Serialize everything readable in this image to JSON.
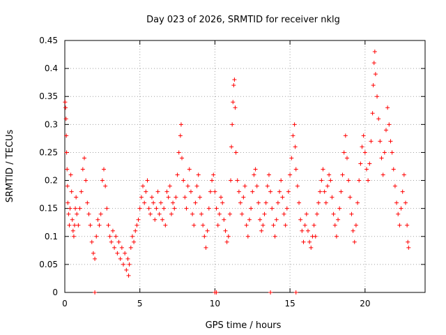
{
  "chart_data": {
    "type": "scatter",
    "title": "Day 023 of 2026, SRMTID for receiver nklg",
    "xlabel": "GPS time / hours",
    "ylabel": "SRMTID / TECUs",
    "xlim": [
      0,
      24
    ],
    "ylim": [
      0,
      0.45
    ],
    "xticks": [
      0,
      5,
      10,
      15,
      20
    ],
    "xtick_labels": [
      "0",
      "5",
      "10",
      "15",
      "20"
    ],
    "yticks": [
      0,
      0.05,
      0.1,
      0.15,
      0.2,
      0.25,
      0.3,
      0.35,
      0.4,
      0.45
    ],
    "ytick_labels": [
      "0",
      "0.05",
      "0.1",
      "0.15",
      "0.2",
      "0.25",
      "0.3",
      "0.35",
      "0.4",
      "0.45"
    ],
    "grid": true,
    "marker": "+",
    "color": "#ff0000",
    "series": [
      {
        "name": "SRMTID",
        "points": [
          [
            0.02,
            0.34
          ],
          [
            0.05,
            0.33
          ],
          [
            0.08,
            0.31
          ],
          [
            0.1,
            0.28
          ],
          [
            0.12,
            0.25
          ],
          [
            0.15,
            0.22
          ],
          [
            0.18,
            0.19
          ],
          [
            0.2,
            0.16
          ],
          [
            0.25,
            0.14
          ],
          [
            0.3,
            0.12
          ],
          [
            0.35,
            0.15
          ],
          [
            0.4,
            0.21
          ],
          [
            0.45,
            0.18
          ],
          [
            0.5,
            0.13
          ],
          [
            0.55,
            0.11
          ],
          [
            0.6,
            0.1
          ],
          [
            0.65,
            0.12
          ],
          [
            0.7,
            0.15
          ],
          [
            0.75,
            0.17
          ],
          [
            0.8,
            0.14
          ],
          [
            0.9,
            0.12
          ],
          [
            1.0,
            0.15
          ],
          [
            1.1,
            0.18
          ],
          [
            1.2,
            0.22
          ],
          [
            1.3,
            0.24
          ],
          [
            1.4,
            0.2
          ],
          [
            1.5,
            0.16
          ],
          [
            1.6,
            0.14
          ],
          [
            1.7,
            0.12
          ],
          [
            1.8,
            0.09
          ],
          [
            1.9,
            0.07
          ],
          [
            2.0,
            0.06
          ],
          [
            2.1,
            0.1
          ],
          [
            2.2,
            0.13
          ],
          [
            2.3,
            0.12
          ],
          [
            2.4,
            0.14
          ],
          [
            2.5,
            0.2
          ],
          [
            2.6,
            0.22
          ],
          [
            2.7,
            0.19
          ],
          [
            2.8,
            0.15
          ],
          [
            2.9,
            0.12
          ],
          [
            3.0,
            0.1
          ],
          [
            3.1,
            0.09
          ],
          [
            3.2,
            0.11
          ],
          [
            3.3,
            0.08
          ],
          [
            3.4,
            0.1
          ],
          [
            3.5,
            0.07
          ],
          [
            3.6,
            0.09
          ],
          [
            3.7,
            0.06
          ],
          [
            3.8,
            0.08
          ],
          [
            3.9,
            0.05
          ],
          [
            4.0,
            0.07
          ],
          [
            4.1,
            0.04
          ],
          [
            4.2,
            0.06
          ],
          [
            4.25,
            0.03
          ],
          [
            4.3,
            0.05
          ],
          [
            4.4,
            0.08
          ],
          [
            4.5,
            0.1
          ],
          [
            4.6,
            0.09
          ],
          [
            4.7,
            0.11
          ],
          [
            4.8,
            0.12
          ],
          [
            4.9,
            0.13
          ],
          [
            5.0,
            0.15
          ],
          [
            5.1,
            0.17
          ],
          [
            5.2,
            0.19
          ],
          [
            5.3,
            0.16
          ],
          [
            5.4,
            0.18
          ],
          [
            5.5,
            0.2
          ],
          [
            5.6,
            0.15
          ],
          [
            5.7,
            0.14
          ],
          [
            5.8,
            0.17
          ],
          [
            5.9,
            0.16
          ],
          [
            6.0,
            0.13
          ],
          [
            6.1,
            0.15
          ],
          [
            6.2,
            0.18
          ],
          [
            6.3,
            0.14
          ],
          [
            6.4,
            0.16
          ],
          [
            6.5,
            0.13
          ],
          [
            6.6,
            0.15
          ],
          [
            6.7,
            0.12
          ],
          [
            6.8,
            0.18
          ],
          [
            6.9,
            0.17
          ],
          [
            7.0,
            0.19
          ],
          [
            7.1,
            0.14
          ],
          [
            7.2,
            0.16
          ],
          [
            7.3,
            0.15
          ],
          [
            7.4,
            0.17
          ],
          [
            7.5,
            0.21
          ],
          [
            7.6,
            0.25
          ],
          [
            7.7,
            0.28
          ],
          [
            7.75,
            0.3
          ],
          [
            7.8,
            0.24
          ],
          [
            7.9,
            0.2
          ],
          [
            8.0,
            0.17
          ],
          [
            8.1,
            0.15
          ],
          [
            8.2,
            0.19
          ],
          [
            8.3,
            0.22
          ],
          [
            8.4,
            0.18
          ],
          [
            8.5,
            0.14
          ],
          [
            8.6,
            0.12
          ],
          [
            8.7,
            0.16
          ],
          [
            8.8,
            0.19
          ],
          [
            8.9,
            0.21
          ],
          [
            9.0,
            0.17
          ],
          [
            9.1,
            0.14
          ],
          [
            9.2,
            0.12
          ],
          [
            9.3,
            0.1
          ],
          [
            9.4,
            0.08
          ],
          [
            9.5,
            0.11
          ],
          [
            9.6,
            0.15
          ],
          [
            9.7,
            0.18
          ],
          [
            9.8,
            0.2
          ],
          [
            9.9,
            0.21
          ],
          [
            10.0,
            0.18
          ],
          [
            10.1,
            0.15
          ],
          [
            10.2,
            0.12
          ],
          [
            10.3,
            0.14
          ],
          [
            10.4,
            0.17
          ],
          [
            10.5,
            0.16
          ],
          [
            10.6,
            0.13
          ],
          [
            10.7,
            0.11
          ],
          [
            10.8,
            0.09
          ],
          [
            10.9,
            0.1
          ],
          [
            11.0,
            0.14
          ],
          [
            11.05,
            0.2
          ],
          [
            11.1,
            0.26
          ],
          [
            11.15,
            0.3
          ],
          [
            11.2,
            0.34
          ],
          [
            11.25,
            0.37
          ],
          [
            11.3,
            0.38
          ],
          [
            11.35,
            0.33
          ],
          [
            11.4,
            0.25
          ],
          [
            11.5,
            0.2
          ],
          [
            11.6,
            0.18
          ],
          [
            11.7,
            0.16
          ],
          [
            11.8,
            0.14
          ],
          [
            11.9,
            0.17
          ],
          [
            12.0,
            0.19
          ],
          [
            12.1,
            0.12
          ],
          [
            12.2,
            0.1
          ],
          [
            12.3,
            0.13
          ],
          [
            12.4,
            0.15
          ],
          [
            12.5,
            0.18
          ],
          [
            12.6,
            0.21
          ],
          [
            12.7,
            0.22
          ],
          [
            12.8,
            0.19
          ],
          [
            12.9,
            0.16
          ],
          [
            13.0,
            0.13
          ],
          [
            13.1,
            0.11
          ],
          [
            13.2,
            0.12
          ],
          [
            13.3,
            0.14
          ],
          [
            13.4,
            0.16
          ],
          [
            13.5,
            0.19
          ],
          [
            13.6,
            0.21
          ],
          [
            13.7,
            0.18
          ],
          [
            13.8,
            0.15
          ],
          [
            13.9,
            0.12
          ],
          [
            14.0,
            0.1
          ],
          [
            14.1,
            0.13
          ],
          [
            14.2,
            0.16
          ],
          [
            14.3,
            0.18
          ],
          [
            14.4,
            0.2
          ],
          [
            14.5,
            0.17
          ],
          [
            14.6,
            0.14
          ],
          [
            14.7,
            0.12
          ],
          [
            14.8,
            0.15
          ],
          [
            14.9,
            0.18
          ],
          [
            15.0,
            0.21
          ],
          [
            15.1,
            0.24
          ],
          [
            15.2,
            0.28
          ],
          [
            15.3,
            0.3
          ],
          [
            15.35,
            0.26
          ],
          [
            15.4,
            0.22
          ],
          [
            15.5,
            0.19
          ],
          [
            15.6,
            0.16
          ],
          [
            15.7,
            0.13
          ],
          [
            15.8,
            0.11
          ],
          [
            15.9,
            0.09
          ],
          [
            16.0,
            0.12
          ],
          [
            16.1,
            0.14
          ],
          [
            16.2,
            0.11
          ],
          [
            16.3,
            0.09
          ],
          [
            16.4,
            0.08
          ],
          [
            16.5,
            0.1
          ],
          [
            16.6,
            0.12
          ],
          [
            16.7,
            0.1
          ],
          [
            16.8,
            0.14
          ],
          [
            16.9,
            0.16
          ],
          [
            17.0,
            0.18
          ],
          [
            17.1,
            0.2
          ],
          [
            17.2,
            0.22
          ],
          [
            17.3,
            0.18
          ],
          [
            17.4,
            0.16
          ],
          [
            17.5,
            0.19
          ],
          [
            17.6,
            0.21
          ],
          [
            17.7,
            0.2
          ],
          [
            17.8,
            0.17
          ],
          [
            17.9,
            0.14
          ],
          [
            18.0,
            0.12
          ],
          [
            18.1,
            0.1
          ],
          [
            18.2,
            0.13
          ],
          [
            18.3,
            0.15
          ],
          [
            18.4,
            0.18
          ],
          [
            18.5,
            0.21
          ],
          [
            18.6,
            0.25
          ],
          [
            18.7,
            0.28
          ],
          [
            18.8,
            0.24
          ],
          [
            18.9,
            0.2
          ],
          [
            19.0,
            0.17
          ],
          [
            19.1,
            0.14
          ],
          [
            19.2,
            0.11
          ],
          [
            19.3,
            0.09
          ],
          [
            19.4,
            0.12
          ],
          [
            19.5,
            0.16
          ],
          [
            19.6,
            0.2
          ],
          [
            19.7,
            0.23
          ],
          [
            19.8,
            0.26
          ],
          [
            19.9,
            0.28
          ],
          [
            20.0,
            0.25
          ],
          [
            20.1,
            0.22
          ],
          [
            20.2,
            0.2
          ],
          [
            20.3,
            0.23
          ],
          [
            20.4,
            0.27
          ],
          [
            20.5,
            0.32
          ],
          [
            20.55,
            0.37
          ],
          [
            20.6,
            0.41
          ],
          [
            20.65,
            0.43
          ],
          [
            20.7,
            0.39
          ],
          [
            20.8,
            0.35
          ],
          [
            20.9,
            0.31
          ],
          [
            21.0,
            0.27
          ],
          [
            21.1,
            0.24
          ],
          [
            21.2,
            0.21
          ],
          [
            21.3,
            0.25
          ],
          [
            21.4,
            0.29
          ],
          [
            21.5,
            0.33
          ],
          [
            21.6,
            0.3
          ],
          [
            21.7,
            0.27
          ],
          [
            21.8,
            0.25
          ],
          [
            21.9,
            0.22
          ],
          [
            22.0,
            0.19
          ],
          [
            22.1,
            0.16
          ],
          [
            22.2,
            0.14
          ],
          [
            22.3,
            0.12
          ],
          [
            22.4,
            0.15
          ],
          [
            22.5,
            0.18
          ],
          [
            22.6,
            0.21
          ],
          [
            22.7,
            0.16
          ],
          [
            22.8,
            0.12
          ],
          [
            22.85,
            0.09
          ],
          [
            22.9,
            0.08
          ]
        ],
        "zero_points": [
          2.0,
          10.0,
          10.1,
          13.7,
          15.4
        ]
      }
    ]
  }
}
